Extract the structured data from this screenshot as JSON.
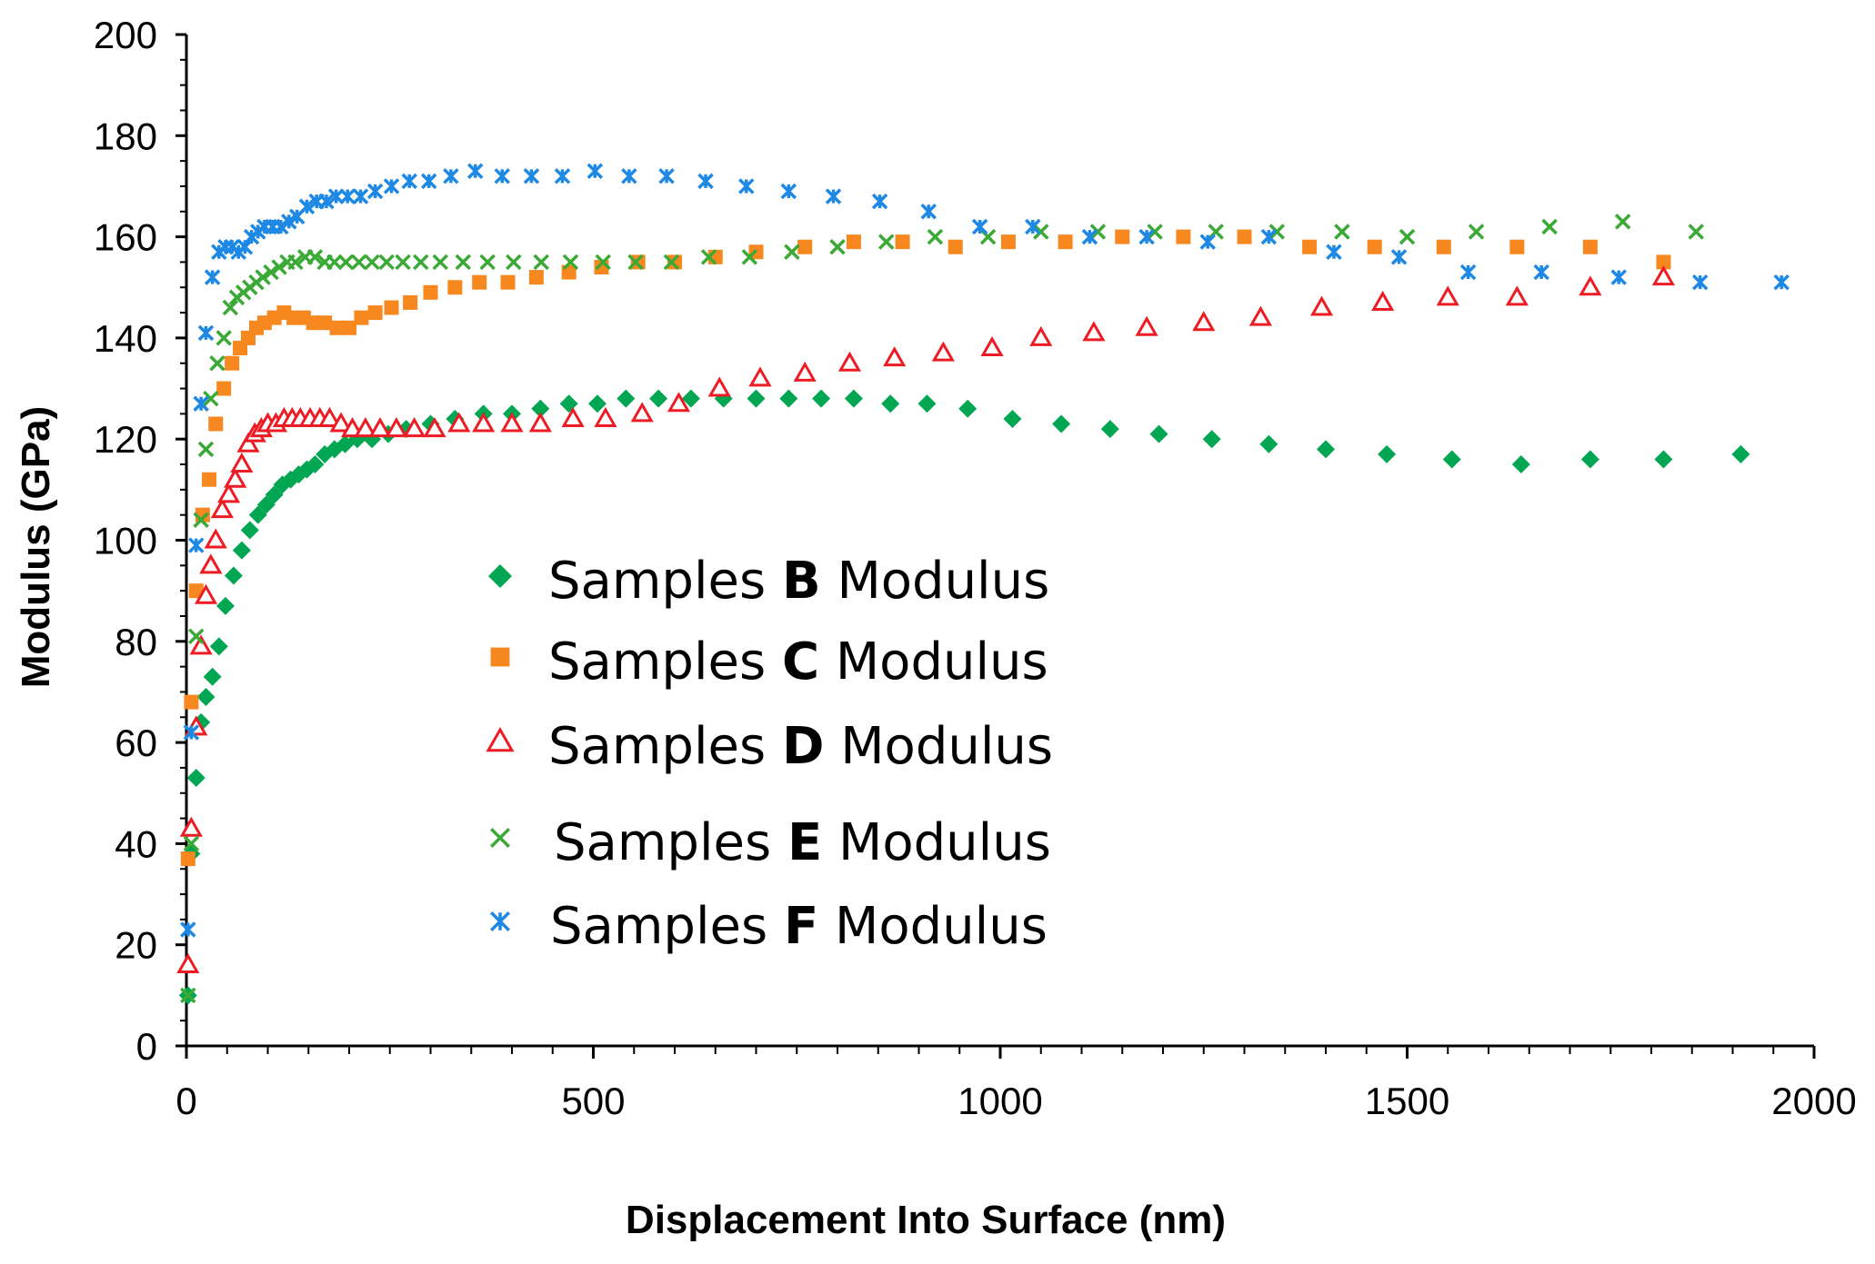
{
  "chart_data": {
    "type": "scatter",
    "title": "",
    "xlabel": "Displacement Into Surface (nm)",
    "ylabel": "Modulus (GPa)",
    "xlim": [
      0,
      2000
    ],
    "ylim": [
      0,
      200
    ],
    "xticks": [
      0,
      500,
      1000,
      1500,
      2000
    ],
    "yticks": [
      0,
      20,
      40,
      60,
      80,
      100,
      120,
      140,
      160,
      180,
      200
    ],
    "grid": false,
    "legend_position": "center-left",
    "series": [
      {
        "name": "Samples B Modulus",
        "legend_prefix": "Samples ",
        "legend_bold": "B",
        "legend_suffix": " Modulus",
        "marker": "diamond",
        "color": "#00a651",
        "x": [
          2,
          6,
          12,
          18,
          24,
          32,
          40,
          48,
          58,
          68,
          78,
          88,
          98,
          108,
          118,
          128,
          138,
          148,
          158,
          170,
          182,
          195,
          210,
          228,
          248,
          270,
          300,
          330,
          365,
          400,
          435,
          470,
          505,
          540,
          580,
          620,
          660,
          700,
          740,
          780,
          820,
          865,
          910,
          960,
          1015,
          1075,
          1135,
          1195,
          1260,
          1330,
          1400,
          1475,
          1555,
          1640,
          1725,
          1815,
          1910
        ],
        "y": [
          10,
          38,
          53,
          64,
          69,
          73,
          79,
          87,
          93,
          98,
          102,
          105,
          107,
          109,
          111,
          112,
          113,
          114,
          115,
          117,
          118,
          119,
          120,
          120,
          121,
          122,
          123,
          124,
          125,
          125,
          126,
          127,
          127,
          128,
          128,
          128,
          128,
          128,
          128,
          128,
          128,
          127,
          127,
          126,
          124,
          123,
          122,
          121,
          120,
          119,
          118,
          117,
          116,
          115,
          116,
          116,
          117
        ]
      },
      {
        "name": "Samples C Modulus",
        "legend_prefix": "Samples ",
        "legend_bold": "C",
        "legend_suffix": " Modulus",
        "marker": "square",
        "color": "#f7871f",
        "x": [
          2,
          6,
          12,
          20,
          28,
          36,
          46,
          56,
          66,
          76,
          86,
          96,
          108,
          120,
          132,
          144,
          156,
          170,
          185,
          200,
          215,
          232,
          252,
          275,
          300,
          330,
          360,
          395,
          430,
          470,
          510,
          555,
          600,
          650,
          700,
          760,
          820,
          880,
          945,
          1010,
          1080,
          1150,
          1225,
          1300,
          1380,
          1460,
          1545,
          1635,
          1725,
          1815
        ],
        "y": [
          37,
          68,
          90,
          105,
          112,
          123,
          130,
          135,
          138,
          140,
          142,
          143,
          144,
          145,
          144,
          144,
          143,
          143,
          142,
          142,
          144,
          145,
          146,
          147,
          149,
          150,
          151,
          151,
          152,
          153,
          154,
          155,
          155,
          156,
          157,
          158,
          159,
          159,
          158,
          159,
          159,
          160,
          160,
          160,
          158,
          158,
          158,
          158,
          158,
          155
        ]
      },
      {
        "name": "Samples D Modulus",
        "legend_prefix": "Samples ",
        "legend_bold": "D",
        "legend_suffix": " Modulus",
        "marker": "triangle",
        "color": "#ed1c24",
        "x": [
          2,
          6,
          12,
          18,
          24,
          30,
          36,
          44,
          52,
          60,
          68,
          76,
          84,
          92,
          100,
          110,
          120,
          130,
          140,
          152,
          164,
          176,
          190,
          204,
          220,
          238,
          258,
          280,
          305,
          335,
          365,
          400,
          435,
          475,
          515,
          560,
          605,
          655,
          705,
          760,
          815,
          870,
          930,
          990,
          1050,
          1115,
          1180,
          1250,
          1320,
          1395,
          1470,
          1550,
          1635,
          1725,
          1815
        ],
        "y": [
          16,
          43,
          63,
          79,
          89,
          95,
          100,
          106,
          109,
          112,
          115,
          119,
          121,
          122,
          123,
          123,
          124,
          124,
          124,
          124,
          124,
          124,
          123,
          122,
          122,
          122,
          122,
          122,
          122,
          123,
          123,
          123,
          123,
          124,
          124,
          125,
          127,
          130,
          132,
          133,
          135,
          136,
          137,
          138,
          140,
          141,
          142,
          143,
          144,
          146,
          147,
          148,
          148,
          150,
          152
        ]
      },
      {
        "name": "Samples E Modulus",
        "legend_prefix": "Samples ",
        "legend_bold": "E",
        "legend_suffix": " Modulus",
        "marker": "x",
        "color": "#3ba935",
        "x": [
          2,
          6,
          12,
          18,
          24,
          30,
          38,
          46,
          54,
          62,
          70,
          78,
          86,
          94,
          104,
          114,
          124,
          134,
          146,
          158,
          170,
          182,
          196,
          212,
          228,
          246,
          266,
          288,
          312,
          340,
          370,
          402,
          436,
          472,
          512,
          552,
          596,
          642,
          692,
          744,
          800,
          860,
          920,
          985,
          1050,
          1120,
          1190,
          1265,
          1340,
          1420,
          1500,
          1585,
          1675,
          1765,
          1855
        ],
        "y": [
          10,
          40,
          81,
          104,
          118,
          128,
          135,
          140,
          146,
          148,
          149,
          150,
          151,
          152,
          153,
          154,
          155,
          155,
          156,
          156,
          155,
          155,
          155,
          155,
          155,
          155,
          155,
          155,
          155,
          155,
          155,
          155,
          155,
          155,
          155,
          155,
          155,
          156,
          156,
          157,
          158,
          159,
          160,
          160,
          161,
          161,
          161,
          161,
          161,
          161,
          160,
          161,
          162,
          163,
          161
        ]
      },
      {
        "name": "Samples F Modulus",
        "legend_prefix": "Samples ",
        "legend_bold": "F",
        "legend_suffix": " Modulus",
        "marker": "star",
        "color": "#1e88e5",
        "x": [
          2,
          6,
          12,
          18,
          24,
          32,
          40,
          48,
          56,
          64,
          72,
          80,
          88,
          96,
          106,
          116,
          126,
          136,
          148,
          160,
          172,
          184,
          198,
          214,
          232,
          252,
          274,
          298,
          325,
          355,
          388,
          424,
          462,
          502,
          544,
          590,
          638,
          688,
          740,
          795,
          852,
          912,
          975,
          1040,
          1110,
          1180,
          1255,
          1330,
          1410,
          1490,
          1575,
          1665,
          1760,
          1860,
          1960
        ],
        "y": [
          23,
          62,
          99,
          127,
          141,
          152,
          157,
          158,
          158,
          157,
          158,
          160,
          161,
          162,
          162,
          162,
          163,
          164,
          166,
          167,
          167,
          168,
          168,
          168,
          169,
          170,
          171,
          171,
          172,
          173,
          172,
          172,
          172,
          173,
          172,
          172,
          171,
          170,
          169,
          168,
          167,
          165,
          162,
          162,
          160,
          160,
          159,
          160,
          157,
          156,
          153,
          153,
          152,
          151,
          151
        ]
      }
    ]
  }
}
